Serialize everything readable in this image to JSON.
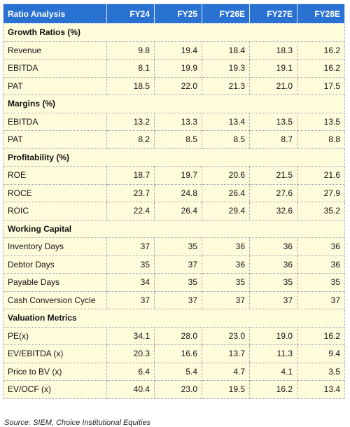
{
  "header": {
    "title": "Ratio Analysis",
    "columns": [
      "FY24",
      "FY25",
      "FY26E",
      "FY27E",
      "FY28E"
    ]
  },
  "sections": [
    {
      "title": "Growth Ratios (%)",
      "rows": [
        {
          "label": "Revenue",
          "values": [
            "9.8",
            "19.4",
            "18.4",
            "18.3",
            "16.2"
          ]
        },
        {
          "label": "EBITDA",
          "values": [
            "8.1",
            "19.9",
            "19.3",
            "19.1",
            "16.2"
          ]
        },
        {
          "label": "PAT",
          "values": [
            "18.5",
            "22.0",
            "21.3",
            "21.0",
            "17.5"
          ]
        }
      ]
    },
    {
      "title": "Margins (%)",
      "rows": [
        {
          "label": "EBITDA",
          "values": [
            "13.2",
            "13.3",
            "13.4",
            "13.5",
            "13.5"
          ]
        },
        {
          "label": "PAT",
          "values": [
            "8.2",
            "8.5",
            "8.5",
            "8.7",
            "8.8"
          ]
        }
      ]
    },
    {
      "title": "Profitability (%)",
      "rows": [
        {
          "label": "ROE",
          "values": [
            "18.7",
            "19.7",
            "20.6",
            "21.5",
            "21.6"
          ]
        },
        {
          "label": "ROCE",
          "values": [
            "23.7",
            "24.8",
            "26.4",
            "27.6",
            "27.9"
          ]
        },
        {
          "label": "ROIC",
          "values": [
            "22.4",
            "26.4",
            "29.4",
            "32.6",
            "35.2"
          ]
        }
      ]
    },
    {
      "title": "Working Capital",
      "rows": [
        {
          "label": "Inventory Days",
          "values": [
            "37",
            "35",
            "36",
            "36",
            "36"
          ]
        },
        {
          "label": "Debtor Days",
          "values": [
            "35",
            "37",
            "36",
            "36",
            "36"
          ]
        },
        {
          "label": "Payable Days",
          "values": [
            "34",
            "35",
            "35",
            "35",
            "35"
          ]
        },
        {
          "label": "Cash Conversion Cycle",
          "values": [
            "37",
            "37",
            "37",
            "37",
            "37"
          ]
        }
      ]
    },
    {
      "title": "Valuation Metrics",
      "rows": [
        {
          "label": "PE(x)",
          "values": [
            "34.1",
            "28.0",
            "23.0",
            "19.0",
            "16.2"
          ]
        },
        {
          "label": "EV/EBITDA (x)",
          "values": [
            "20.3",
            "16.6",
            "13.7",
            "11.3",
            "9.4"
          ]
        },
        {
          "label": "Price to BV (x)",
          "values": [
            "6.4",
            "5.4",
            "4.7",
            "4.1",
            "3.5"
          ]
        },
        {
          "label": "EV/OCF (x)",
          "values": [
            "40.4",
            "23.0",
            "19.5",
            "16.2",
            "13.4"
          ]
        }
      ]
    }
  ],
  "source": "Source: SIEM, Choice Institutional Equities"
}
